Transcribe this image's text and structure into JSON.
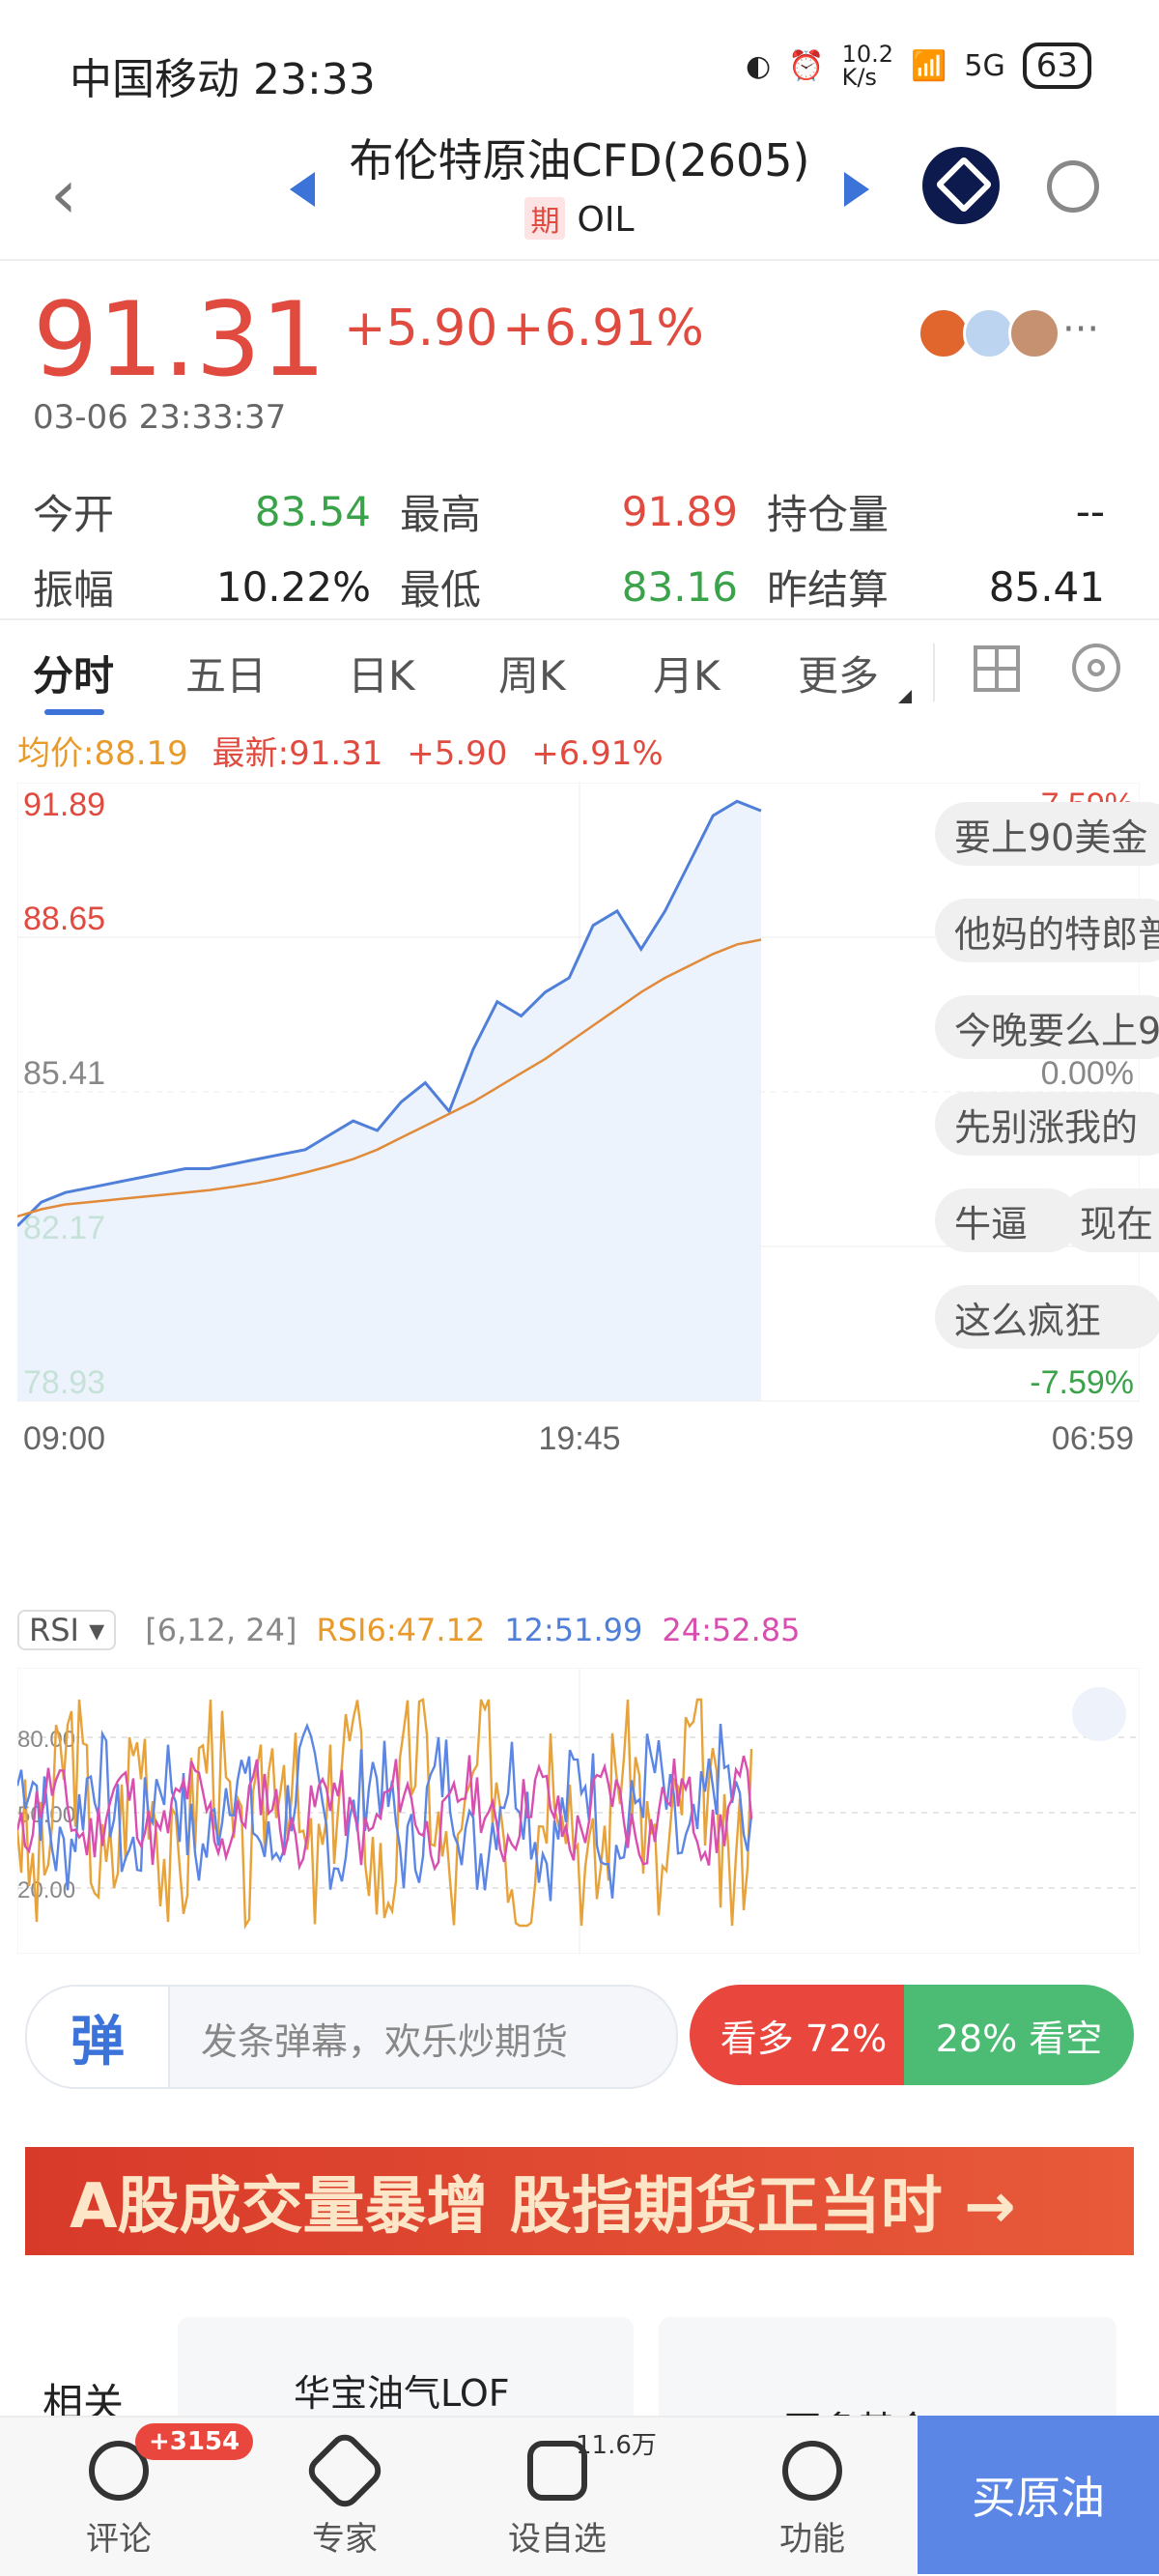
{
  "status": {
    "carrier_time": "中国移动 23:33",
    "net_speed": "10.2\nK/s",
    "signal": "5G",
    "battery": "63"
  },
  "header": {
    "title": "布伦特原油CFD(2605)",
    "tag": "期",
    "code": "OIL"
  },
  "quote": {
    "price": "91.31",
    "change": "+5.90",
    "change_pct": "+6.91%",
    "datetime": "03-06 23:33:37",
    "stats": [
      [
        {
          "label": "今开",
          "value": "83.54",
          "color": "green"
        },
        {
          "label": "最高",
          "value": "91.89",
          "color": "red"
        },
        {
          "label": "持仓量",
          "value": "--",
          "color": "plain"
        }
      ],
      [
        {
          "label": "振幅",
          "value": "10.22%",
          "color": "plain"
        },
        {
          "label": "最低",
          "value": "83.16",
          "color": "green"
        },
        {
          "label": "昨结算",
          "value": "85.41",
          "color": "plain"
        }
      ]
    ]
  },
  "tabs": [
    "分时",
    "五日",
    "日K",
    "周K",
    "月K",
    "更多"
  ],
  "chart_info": {
    "avg": "均价:88.19",
    "latest": "最新:91.31",
    "chg": "+5.90",
    "pct": "+6.91%"
  },
  "chart_data": {
    "type": "line",
    "yticks_left": [
      "91.89",
      "88.65",
      "85.41",
      "82.17",
      "78.93"
    ],
    "yticks_right": [
      "7.59%",
      "0.00%",
      "-7.59%"
    ],
    "x_ticks": [
      "09:00",
      "19:45",
      "06:59"
    ],
    "ylim": [
      78.93,
      91.89
    ],
    "series": [
      {
        "values": [
          82.6,
          83.1,
          83.3,
          83.4,
          83.5,
          83.6,
          83.7,
          83.8,
          83.8,
          83.9,
          84.0,
          84.1,
          84.2,
          84.5,
          84.8,
          84.6,
          85.2,
          85.6,
          85.0,
          86.3,
          87.3,
          87.0,
          87.5,
          87.8,
          88.9,
          89.2,
          88.4,
          89.2,
          90.2,
          91.2,
          91.5,
          91.3
        ]
      },
      {
        "values": [
          82.8,
          82.95,
          83.05,
          83.1,
          83.15,
          83.2,
          83.25,
          83.3,
          83.35,
          83.42,
          83.5,
          83.6,
          83.72,
          83.85,
          84.0,
          84.2,
          84.45,
          84.7,
          84.95,
          85.2,
          85.5,
          85.8,
          86.1,
          86.45,
          86.8,
          87.15,
          87.5,
          87.8,
          88.05,
          88.3,
          88.5,
          88.6
        ]
      }
    ]
  },
  "danmaku": [
    "要上90美金",
    "他妈的特郎普",
    "今晚要么上9",
    "先别涨我的",
    "牛逼",
    "现在",
    "这么疯狂"
  ],
  "rsi": {
    "tag": "RSI",
    "params": "[6,12, 24]",
    "rsi6": "RSI6:47.12",
    "rsi12": "12:51.99",
    "rsi24": "24:52.85",
    "levels": [
      "80.00",
      "50.00",
      "20.00"
    ]
  },
  "comment": {
    "placeholder": "发条弹幕，欢乐炒期货",
    "icon": "弹"
  },
  "sentiment": {
    "bull": "看多 72%",
    "bear": "28% 看空"
  },
  "banner": {
    "text": "A股成交量暴增 股指期货正当时 →"
  },
  "related": {
    "label": "相关",
    "card1": "华宝油气LOF",
    "card2": "更多基金"
  },
  "bottom_nav": {
    "items": [
      "评论",
      "专家",
      "设自选",
      "功能"
    ],
    "badge": "+3154",
    "count": "11.6万",
    "buy": "买原油"
  }
}
